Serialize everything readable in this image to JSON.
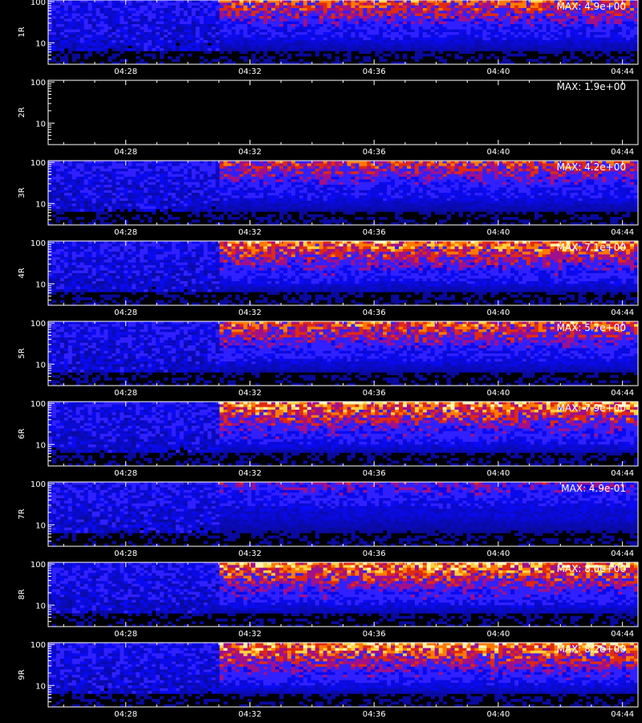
{
  "chart_data": {
    "type": "heatmap",
    "x_ticks": [
      "04:28",
      "04:32",
      "04:36",
      "04:40",
      "04:44"
    ],
    "x_range": [
      "04:25:30",
      "04:44:30"
    ],
    "y_ticks": [
      "100",
      "10"
    ],
    "y_scale": "log",
    "y_range": [
      3,
      110
    ],
    "colormap": [
      "#000000",
      "#1a1aff",
      "#c01060",
      "#ff3b00",
      "#ffd040",
      "#ffffff"
    ],
    "enhancement_start": "04:31:00",
    "panels": [
      {
        "label": "1R",
        "max_label": "MAX: 4.9e+00",
        "max": 4.9,
        "empty": false
      },
      {
        "label": "2R",
        "max_label": "MAX: 1.9e+00",
        "max": 1.9,
        "empty": true
      },
      {
        "label": "3R",
        "max_label": "MAX: 4.2e+00",
        "max": 4.2,
        "empty": false
      },
      {
        "label": "4R",
        "max_label": "MAX: 7.1e+00",
        "max": 7.1,
        "empty": false
      },
      {
        "label": "5R",
        "max_label": "MAX: 5.7e+00",
        "max": 5.7,
        "empty": false
      },
      {
        "label": "6R",
        "max_label": "MAX: 7.9e+00",
        "max": 7.9,
        "empty": false
      },
      {
        "label": "7R",
        "max_label": "MAX: 4.9e-01",
        "max": 0.49,
        "empty": false
      },
      {
        "label": "8R",
        "max_label": "MAX: 8.0e+00",
        "max": 8.0,
        "empty": false
      },
      {
        "label": "9R",
        "max_label": "MAX: 8.2e+00",
        "max": 8.2,
        "empty": false
      }
    ]
  }
}
